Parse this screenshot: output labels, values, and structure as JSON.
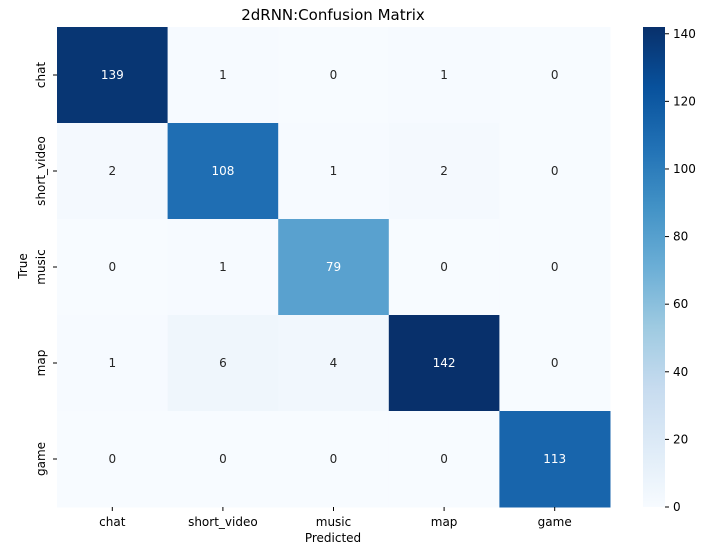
{
  "chart_data": {
    "type": "heatmap",
    "title": "2dRNN:Confusion Matrix",
    "xlabel": "Predicted",
    "ylabel": "True",
    "x_categories": [
      "chat",
      "short_video",
      "music",
      "map",
      "game"
    ],
    "y_categories": [
      "chat",
      "short_video",
      "music",
      "map",
      "game"
    ],
    "values": [
      [
        139,
        1,
        0,
        1,
        0
      ],
      [
        2,
        108,
        1,
        2,
        0
      ],
      [
        0,
        1,
        79,
        0,
        0
      ],
      [
        1,
        6,
        4,
        142,
        0
      ],
      [
        0,
        0,
        0,
        0,
        113
      ]
    ],
    "colorbar": {
      "range": [
        0,
        142
      ],
      "ticks": [
        0,
        20,
        40,
        60,
        80,
        100,
        120,
        140
      ],
      "colormap": "Blues"
    }
  }
}
